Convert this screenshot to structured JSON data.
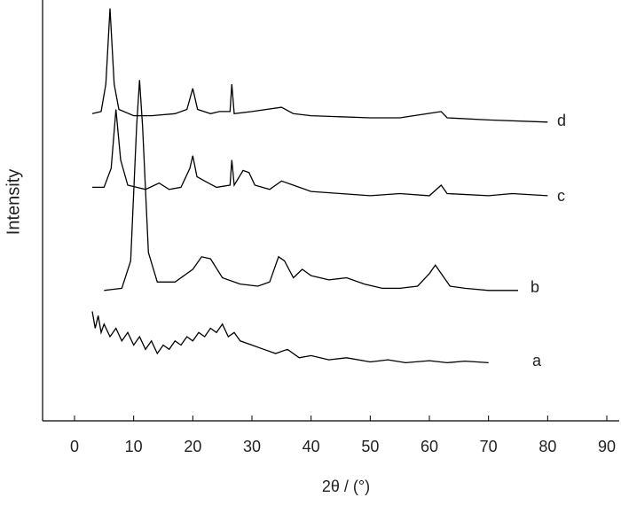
{
  "chart_data": {
    "type": "line",
    "x_label": "2θ / (°)",
    "y_label": "Intensity",
    "xlim": [
      -5.4,
      92.1
    ],
    "xticks": [
      0,
      10,
      20,
      30,
      40,
      50,
      60,
      70,
      80,
      90
    ],
    "ylim": [
      0,
      100
    ],
    "color": "#000000",
    "series": [
      {
        "name": "a",
        "x": [
          3,
          3.5,
          4,
          4.5,
          5,
          6,
          7,
          8,
          9,
          10,
          11,
          12,
          13,
          14,
          15,
          16,
          17,
          18,
          19,
          20,
          21,
          22,
          23,
          24,
          25,
          26,
          27,
          28,
          30,
          32,
          34,
          36,
          38,
          40,
          43,
          46,
          50,
          53,
          56,
          60,
          63,
          66,
          70
        ],
        "values": [
          26,
          22,
          25,
          21,
          23,
          20,
          22,
          19,
          21,
          18,
          20,
          17,
          19,
          16,
          18,
          17,
          19,
          18,
          20,
          19,
          21,
          20,
          22,
          21,
          23,
          20,
          21,
          19,
          18,
          17,
          16,
          17,
          15,
          15.5,
          14.5,
          15,
          14,
          14.5,
          13.8,
          14.3,
          13.8,
          14.2,
          13.8
        ]
      },
      {
        "name": "b",
        "x": [
          5,
          8,
          9.5,
          10.5,
          11,
          11.5,
          12.5,
          14,
          17,
          20,
          21.5,
          23,
          25,
          28,
          31,
          33,
          34.5,
          35.5,
          37,
          38.5,
          40,
          43,
          46,
          49,
          52,
          55,
          58,
          60,
          61,
          62,
          63.5,
          66,
          70,
          75
        ],
        "values": [
          31,
          31.5,
          38,
          70,
          81,
          70,
          40,
          33,
          33,
          36,
          39,
          38.5,
          34,
          32.5,
          32,
          33,
          39,
          38,
          34,
          36,
          34.5,
          33.5,
          34,
          32.5,
          31.5,
          31.5,
          32,
          35,
          37,
          35,
          32,
          31.5,
          31,
          31
        ]
      },
      {
        "name": "c",
        "x": [
          3,
          5,
          6.2,
          7,
          7.8,
          9,
          12,
          14.3,
          16,
          18,
          19.5,
          20,
          20.7,
          22,
          24,
          26.3,
          26.6,
          27,
          28.5,
          29.5,
          30.5,
          33,
          35,
          37,
          40,
          45,
          50,
          55,
          60,
          62,
          63,
          70,
          74,
          80
        ],
        "values": [
          55.5,
          55.5,
          60,
          74,
          62,
          56,
          55,
          56.5,
          55,
          55.5,
          60,
          63,
          58,
          57,
          55.5,
          56,
          62,
          56,
          59.5,
          59,
          56,
          55,
          57,
          56,
          54.5,
          54,
          53.5,
          54,
          53.5,
          56,
          54,
          53.5,
          54,
          53.5
        ]
      },
      {
        "name": "d",
        "x": [
          3,
          4.5,
          5.3,
          6,
          6.7,
          7.5,
          10,
          13,
          17,
          19,
          20,
          20.8,
          23,
          24.5,
          26.3,
          26.6,
          27,
          30,
          35,
          37,
          40,
          50,
          55,
          62,
          63,
          70,
          80
        ],
        "values": [
          73,
          73.5,
          80,
          98,
          80,
          74,
          72.5,
          72.5,
          73,
          74,
          79,
          74,
          73,
          73.5,
          73.5,
          80,
          73,
          73.5,
          74.5,
          73,
          72.5,
          72,
          72,
          73.5,
          72,
          71.5,
          71
        ]
      }
    ]
  }
}
